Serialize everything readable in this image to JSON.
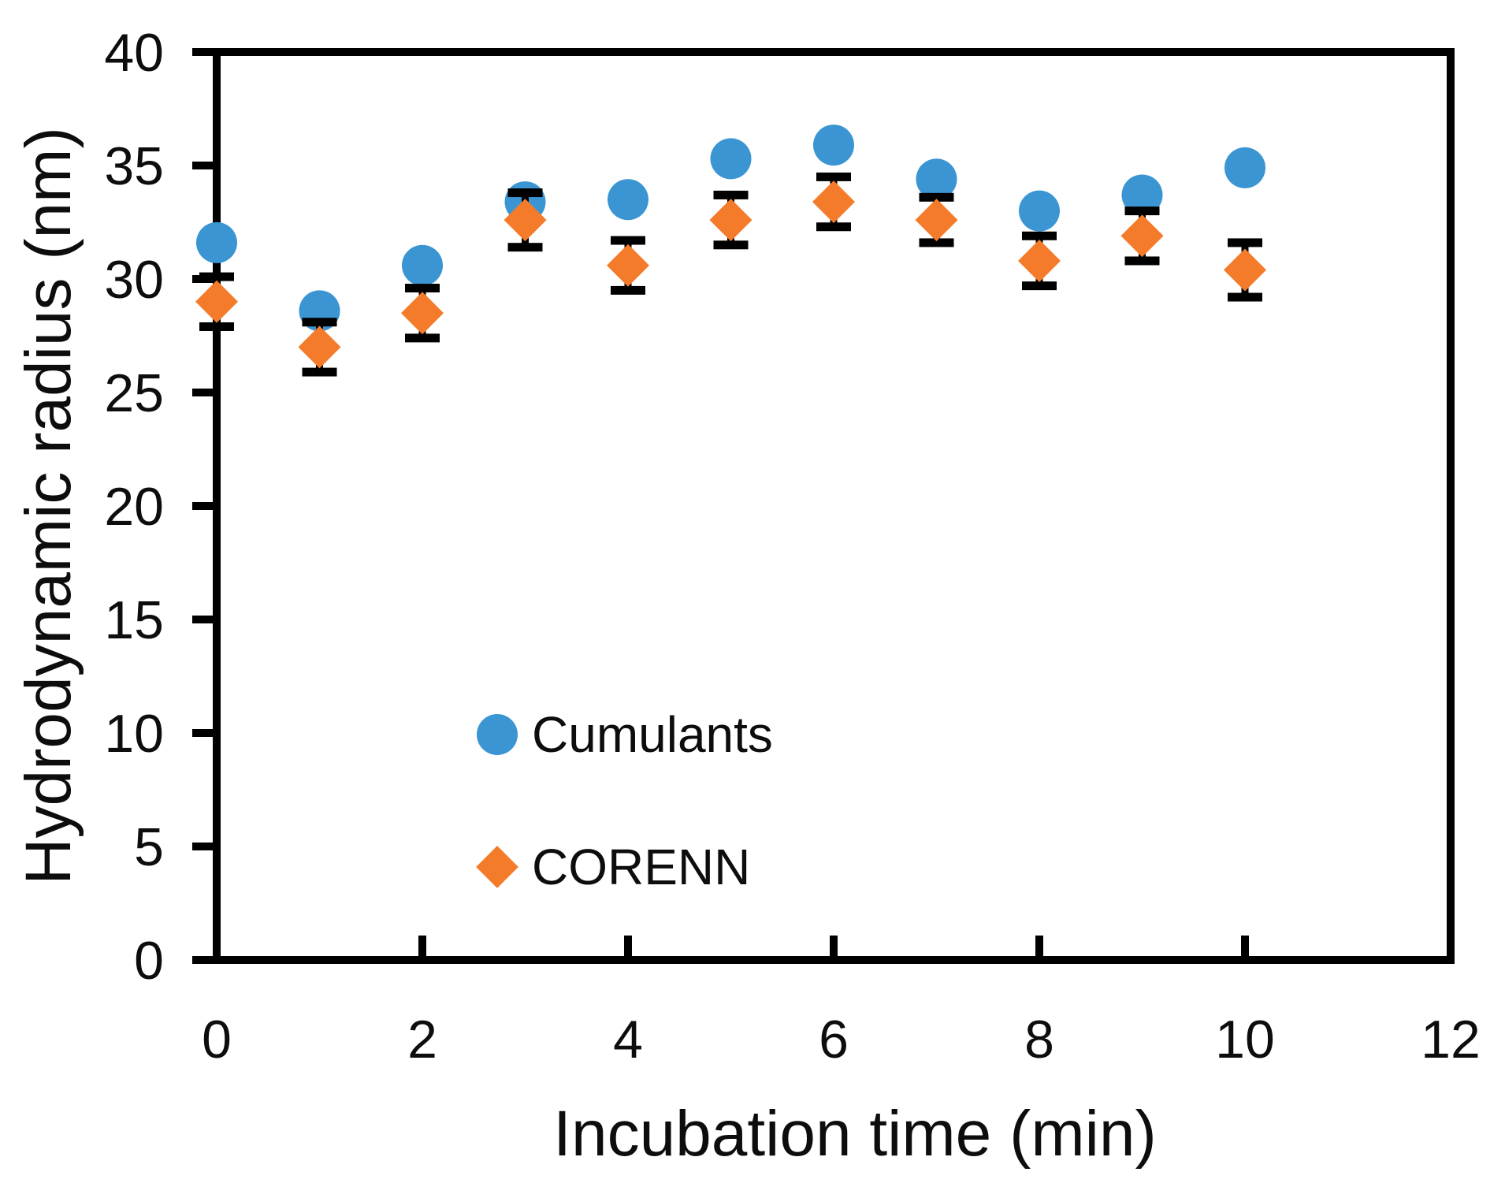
{
  "chart_data": {
    "type": "scatter",
    "title": "",
    "xlabel": "Incubation time (min)",
    "ylabel": "Hydrodynamic radius (nm)",
    "xlim": [
      0,
      12
    ],
    "ylim": [
      0,
      40
    ],
    "x_ticks": [
      0,
      2,
      4,
      6,
      8,
      10,
      12
    ],
    "y_ticks": [
      0,
      5,
      10,
      15,
      20,
      25,
      30,
      35,
      40
    ],
    "grid": false,
    "background_color": "#ffffff",
    "axis_color": "#000000",
    "legend_position": "inside-lower-left",
    "x": [
      0,
      1,
      2,
      3,
      4,
      5,
      6,
      7,
      8,
      9,
      10
    ],
    "series": [
      {
        "name": "Cumulants",
        "marker": "circle",
        "color": "#3b95d3",
        "values": [
          31.6,
          28.6,
          30.6,
          33.4,
          33.5,
          35.3,
          35.9,
          34.4,
          33.0,
          33.7,
          34.9
        ]
      },
      {
        "name": "CORENN",
        "marker": "diamond",
        "color": "#f47b2a",
        "values": [
          29.0,
          27.0,
          28.5,
          32.6,
          30.6,
          32.6,
          33.4,
          32.6,
          30.8,
          31.9,
          30.4
        ],
        "error_bars": [
          1.1,
          1.1,
          1.1,
          1.2,
          1.1,
          1.1,
          1.1,
          1.0,
          1.1,
          1.1,
          1.2
        ],
        "error_bar_color": "#000000"
      }
    ]
  }
}
